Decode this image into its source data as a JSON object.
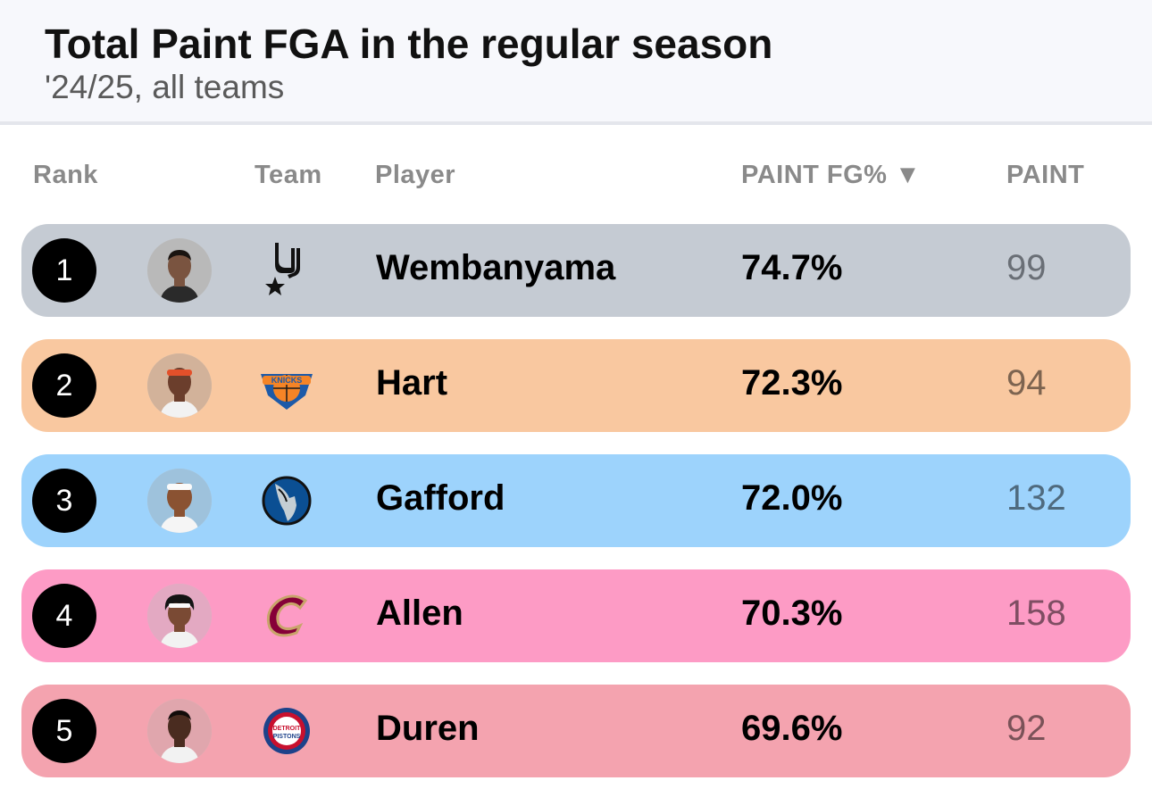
{
  "header": {
    "title": "Total Paint FGA in the regular season",
    "subtitle": "'24/25, all teams"
  },
  "columns": {
    "rank": "Rank",
    "team": "Team",
    "player": "Player",
    "paint_fg_pct": "PAINT FG% ▼",
    "paint": "PAINT"
  },
  "rows": [
    {
      "rank": "1",
      "player": "Wembanyama",
      "paint_fg_pct": "74.7%",
      "paint": "99",
      "team_icon": "spurs-logo-icon",
      "color": "#c5cbd3",
      "paint_color": "#6a6f76"
    },
    {
      "rank": "2",
      "player": "Hart",
      "paint_fg_pct": "72.3%",
      "paint": "94",
      "team_icon": "knicks-logo-icon",
      "color": "#f9c8a0",
      "paint_color": "#7d6450"
    },
    {
      "rank": "3",
      "player": "Gafford",
      "paint_fg_pct": "72.0%",
      "paint": "132",
      "team_icon": "mavericks-logo-icon",
      "color": "#9dd3fc",
      "paint_color": "#4f6a7e"
    },
    {
      "rank": "4",
      "player": "Allen",
      "paint_fg_pct": "70.3%",
      "paint": "158",
      "team_icon": "cavaliers-logo-icon",
      "color": "#fd9bc5",
      "paint_color": "#7f4e63"
    },
    {
      "rank": "5",
      "player": "Duren",
      "paint_fg_pct": "69.6%",
      "paint": "92",
      "team_icon": "pistons-logo-icon",
      "color": "#f4a3af",
      "paint_color": "#7a5258"
    }
  ]
}
